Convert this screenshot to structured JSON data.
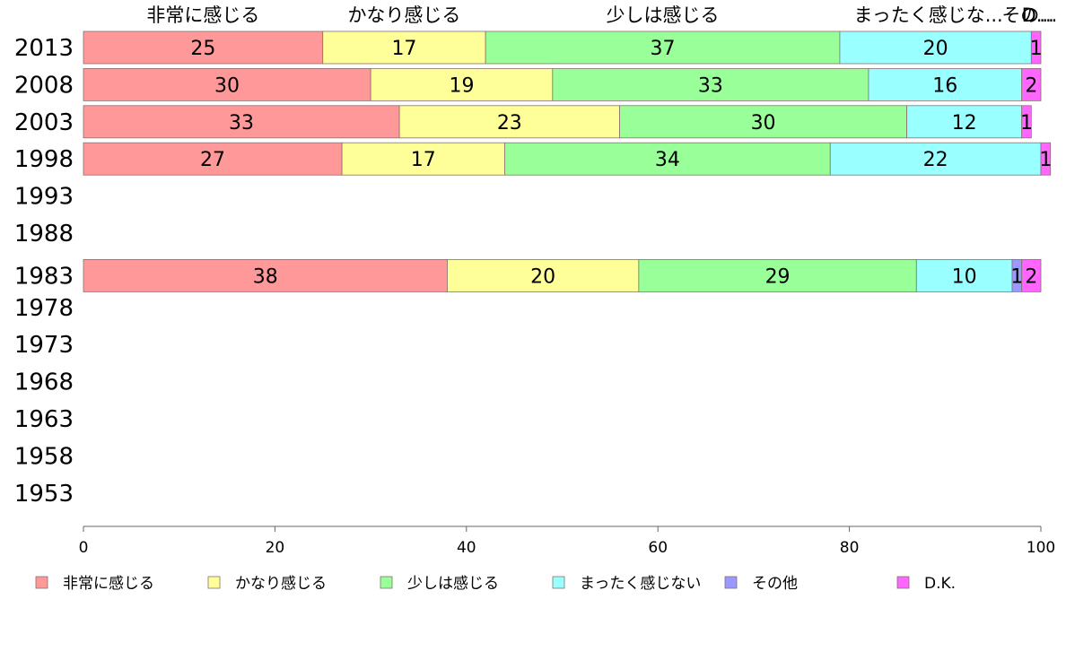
{
  "chart_data": {
    "type": "bar",
    "orientation": "horizontal",
    "stacked": true,
    "xlim": [
      0,
      100
    ],
    "x_ticks": [
      0,
      20,
      40,
      60,
      80,
      100
    ],
    "categories": [
      "2013",
      "2008",
      "2003",
      "1998",
      "1993",
      "1988",
      "1983",
      "1978",
      "1973",
      "1968",
      "1963",
      "1958",
      "1953"
    ],
    "top_labels": [
      "非常に感じる",
      "かなり感じる",
      "少しは感じる",
      "まったく感じな...",
      "その...",
      "D..."
    ],
    "series": [
      {
        "name": "非常に感じる",
        "color": "#ff9999",
        "values": [
          25,
          30,
          33,
          27,
          null,
          null,
          38,
          null,
          null,
          null,
          null,
          null,
          null
        ]
      },
      {
        "name": "かなり感じる",
        "color": "#ffff99",
        "values": [
          17,
          19,
          23,
          17,
          null,
          null,
          20,
          null,
          null,
          null,
          null,
          null,
          null
        ]
      },
      {
        "name": "少しは感じる",
        "color": "#99ff99",
        "values": [
          37,
          33,
          30,
          34,
          null,
          null,
          29,
          null,
          null,
          null,
          null,
          null,
          null
        ]
      },
      {
        "name": "まったく感じない",
        "color": "#99ffff",
        "values": [
          20,
          16,
          12,
          22,
          null,
          null,
          10,
          null,
          null,
          null,
          null,
          null,
          null
        ]
      },
      {
        "name": "その他",
        "color": "#9999ff",
        "values": [
          0,
          0,
          0,
          0,
          null,
          null,
          1,
          null,
          null,
          null,
          null,
          null,
          null
        ]
      },
      {
        "name": "D.K.",
        "color": "#ff66ff",
        "values": [
          1,
          2,
          1,
          1,
          null,
          null,
          2,
          null,
          null,
          null,
          null,
          null,
          null
        ]
      }
    ],
    "grid": false,
    "legend_position": "bottom"
  }
}
